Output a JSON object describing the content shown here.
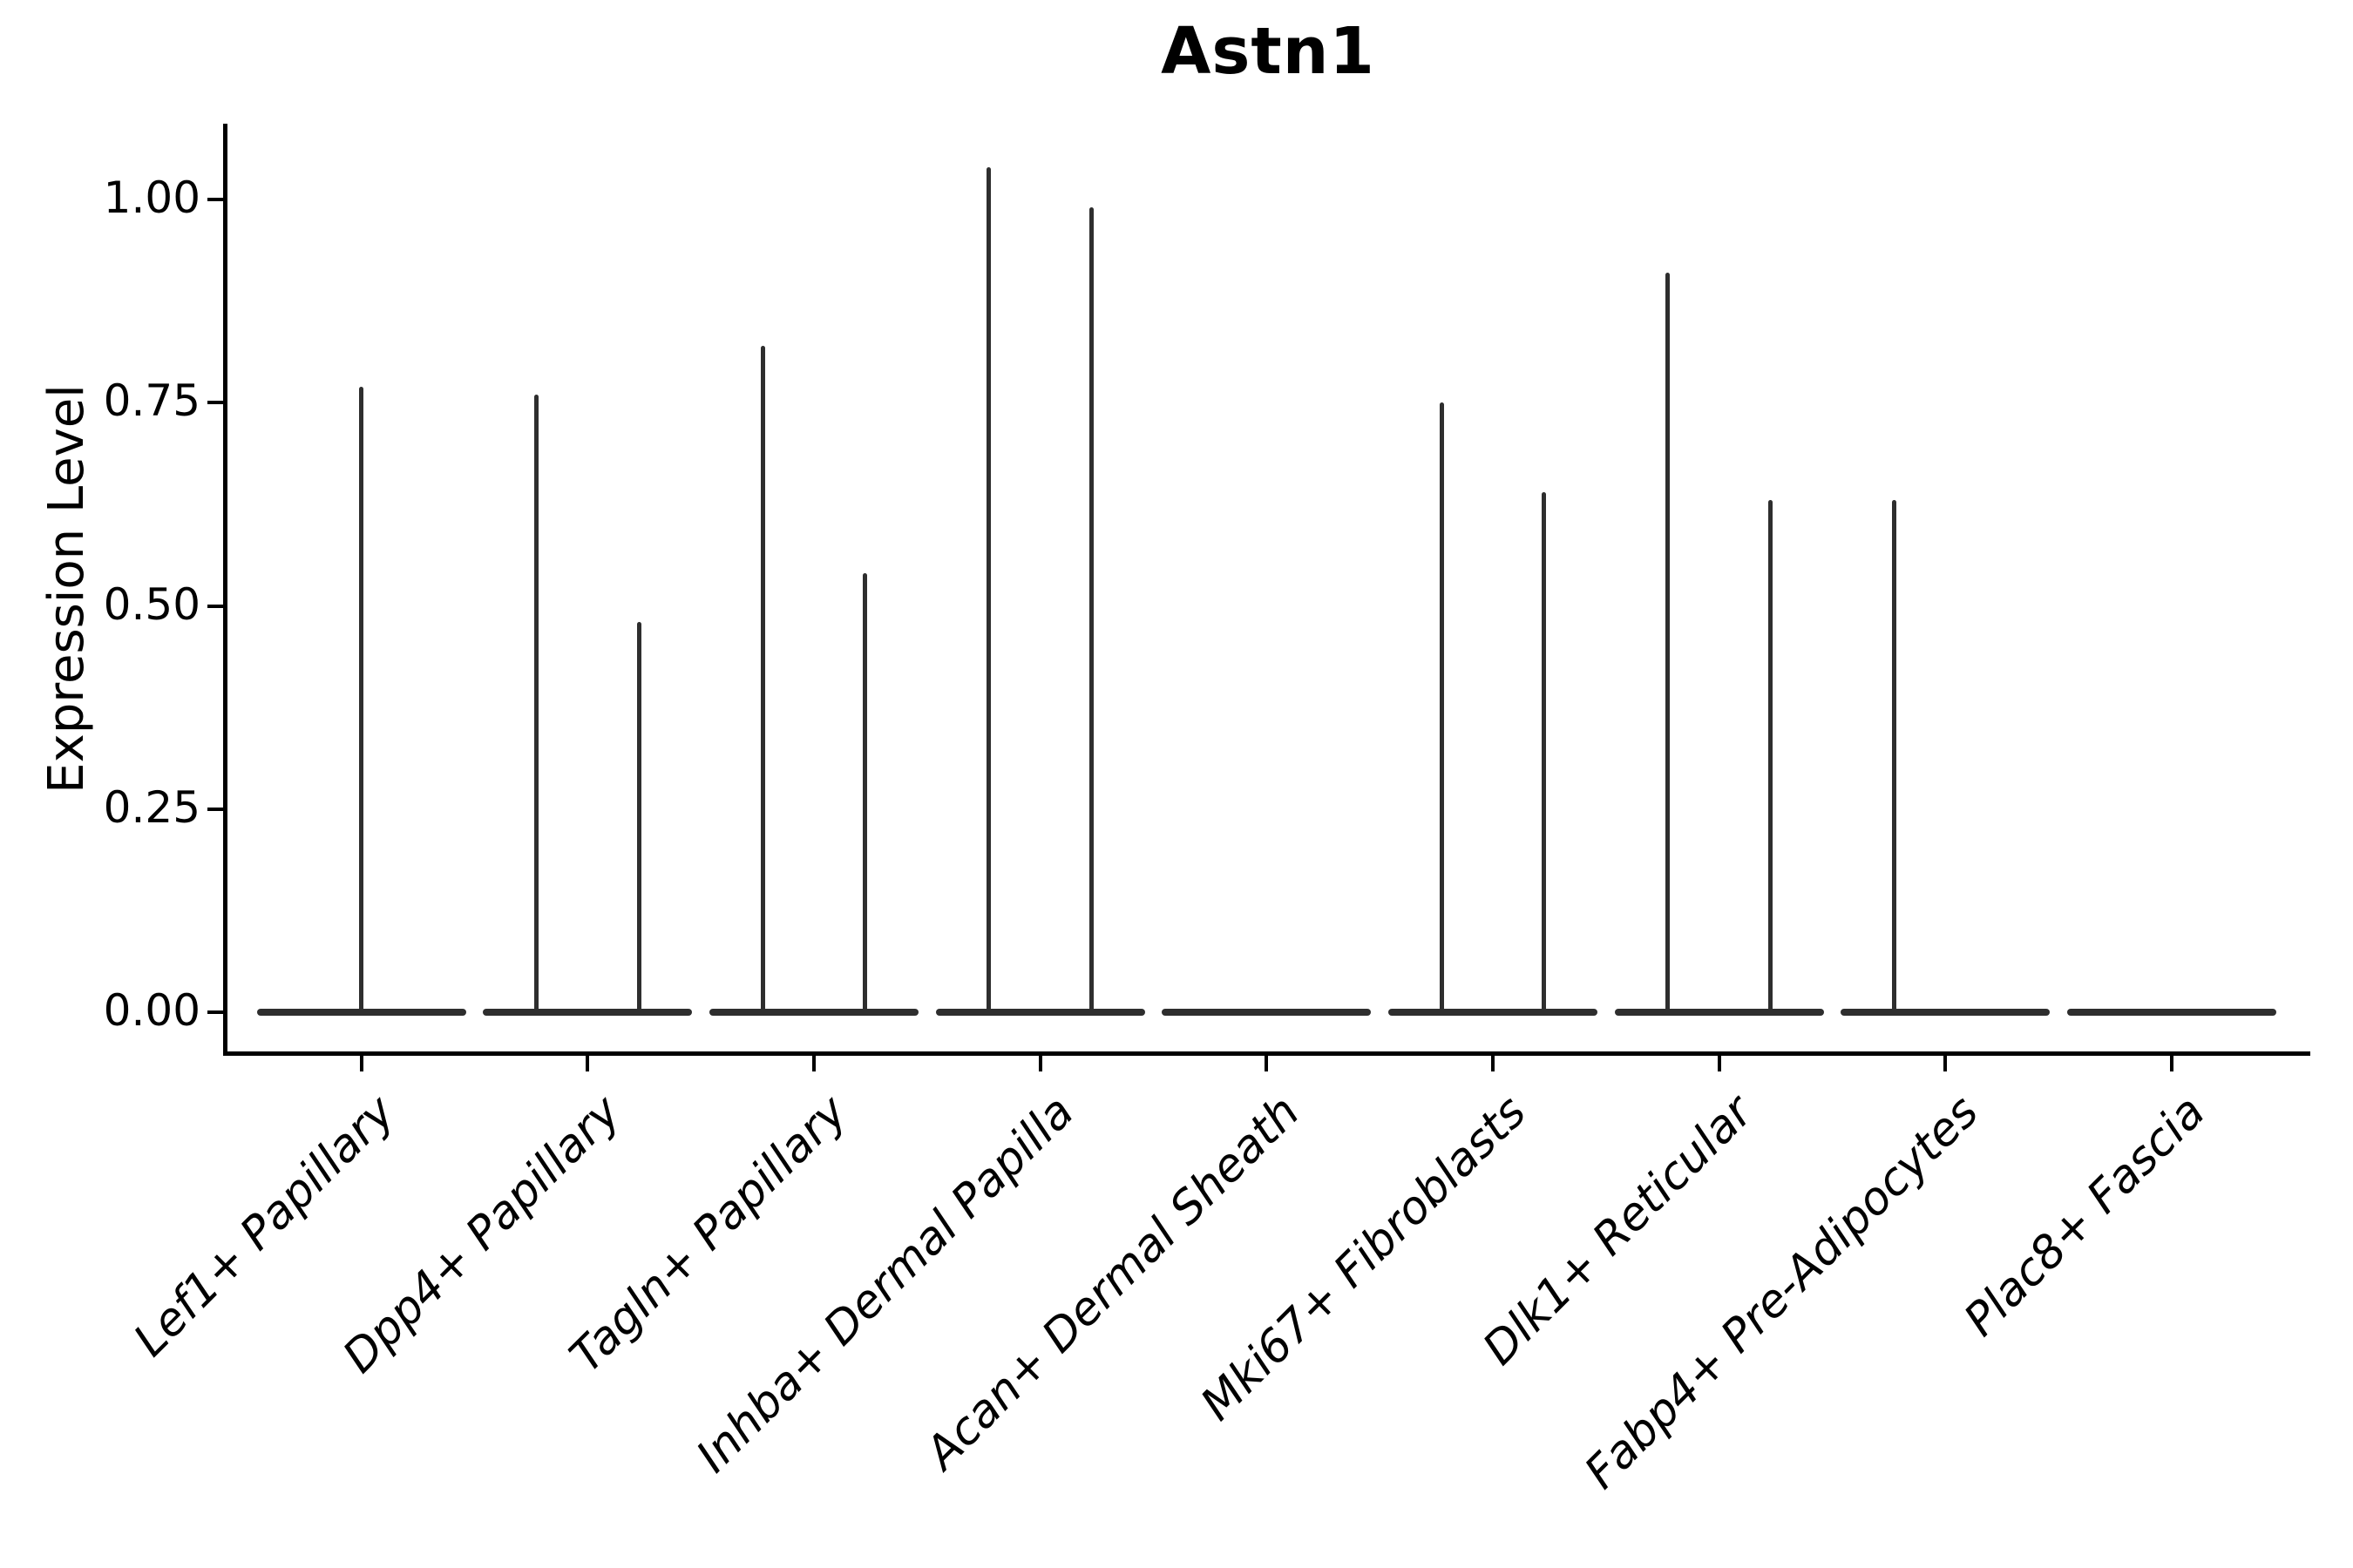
{
  "figure": {
    "background_color": "#ffffff"
  },
  "chart_data": {
    "type": "violin",
    "title": "Astn1",
    "xlabel": "",
    "ylabel": "Expression Level",
    "ylim": [
      0,
      1.09
    ],
    "ytick_values": [
      0,
      0.25,
      0.5,
      0.75,
      1.0
    ],
    "ytick_labels": [
      "0.00",
      "0.25",
      "0.50",
      "0.75",
      "1.00"
    ],
    "x_tick_rotation": 45,
    "grid": false,
    "legend": "none",
    "categories": [
      "Lef1+ Papillary",
      "Dpp4+ Papillary",
      "Tagln+ Papillary",
      "Inhba+ Dermal Papilla",
      "Acan+ Dermal Sheath",
      "Mki67+ Fibroblasts",
      "Dlk1+ Reticular",
      "Fabp4+ Pre-Adipocytes",
      "Plac8+ Fascia"
    ],
    "violin_description": "Each category shows a violin flattened at expression 0 (nearly all cells zero) with thin vertical density spikes rising to the maximum expression of the few expressing cells; two dodged sub-violins per category where present.",
    "violins": [
      {
        "category": "Lef1+ Papillary",
        "baseline": 0,
        "spikes": [
          {
            "position": "center",
            "max_expression": 0.77
          }
        ]
      },
      {
        "category": "Dpp4+ Papillary",
        "baseline": 0,
        "spikes": [
          {
            "position": "left",
            "max_expression": 0.76
          },
          {
            "position": "right",
            "max_expression": 0.48
          }
        ]
      },
      {
        "category": "Tagln+ Papillary",
        "baseline": 0,
        "spikes": [
          {
            "position": "left",
            "max_expression": 0.82
          },
          {
            "position": "right",
            "max_expression": 0.54
          }
        ]
      },
      {
        "category": "Inhba+ Dermal Papilla",
        "baseline": 0,
        "spikes": [
          {
            "position": "left",
            "max_expression": 1.04
          },
          {
            "position": "right",
            "max_expression": 0.99
          }
        ]
      },
      {
        "category": "Acan+ Dermal Sheath",
        "baseline": 0,
        "spikes": []
      },
      {
        "category": "Mki67+ Fibroblasts",
        "baseline": 0,
        "spikes": [
          {
            "position": "left",
            "max_expression": 0.75
          },
          {
            "position": "right",
            "max_expression": 0.64
          }
        ]
      },
      {
        "category": "Dlk1+ Reticular",
        "baseline": 0,
        "spikes": [
          {
            "position": "left",
            "max_expression": 0.91
          },
          {
            "position": "right",
            "max_expression": 0.63
          }
        ]
      },
      {
        "category": "Fabp4+ Pre-Adipocytes",
        "baseline": 0,
        "spikes": [
          {
            "position": "left",
            "max_expression": 0.63
          }
        ]
      },
      {
        "category": "Plac8+ Fascia",
        "baseline": 0,
        "spikes": []
      }
    ],
    "colors": {
      "violin": "#2e2e2e",
      "axis": "#000000",
      "text": "#000000",
      "background": "#ffffff"
    }
  }
}
